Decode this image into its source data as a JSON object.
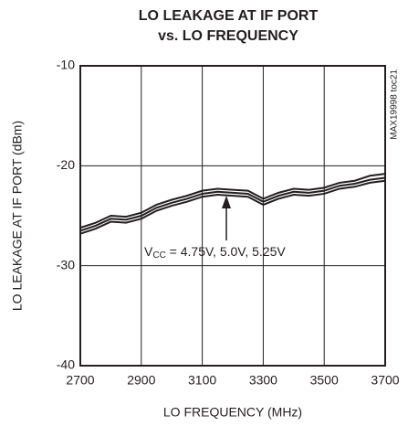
{
  "chart_data": {
    "type": "line",
    "title": [
      "LO LEAKAGE AT IF PORT",
      "vs. LO FREQUENCY"
    ],
    "xlabel": "LO FREQUENCY (MHz)",
    "ylabel": "LO LEAKAGE AT IF PORT (dBm)",
    "annotation": [
      "V",
      "CC",
      " = 4.75V, 5.0V, 5.25V"
    ],
    "side_note": "MAX19998 toc21",
    "x": [
      2700,
      2750,
      2800,
      2850,
      2900,
      2950,
      3000,
      3050,
      3100,
      3150,
      3200,
      3250,
      3300,
      3350,
      3400,
      3450,
      3500,
      3550,
      3600,
      3650,
      3700
    ],
    "series": [
      {
        "color": "#231f20",
        "values": [
          -26.2,
          -25.7,
          -25.0,
          -25.1,
          -24.7,
          -23.9,
          -23.4,
          -23.0,
          -22.5,
          -22.3,
          -22.4,
          -22.5,
          -23.3,
          -22.7,
          -22.3,
          -22.4,
          -22.2,
          -21.7,
          -21.5,
          -21.0,
          -20.8
        ]
      },
      {
        "color": "#231f20",
        "values": [
          -26.5,
          -26.0,
          -25.3,
          -25.4,
          -25.0,
          -24.2,
          -23.7,
          -23.3,
          -22.8,
          -22.6,
          -22.7,
          -22.8,
          -23.6,
          -23.0,
          -22.6,
          -22.7,
          -22.5,
          -22.0,
          -21.8,
          -21.4,
          -21.2
        ]
      },
      {
        "color": "#231f20",
        "values": [
          -26.8,
          -26.3,
          -25.6,
          -25.7,
          -25.3,
          -24.5,
          -24.0,
          -23.6,
          -23.1,
          -22.9,
          -23.0,
          -23.1,
          -23.9,
          -23.3,
          -22.9,
          -23.0,
          -22.8,
          -22.3,
          -22.1,
          -21.7,
          -21.5
        ]
      }
    ],
    "xlim": [
      2700,
      3700
    ],
    "xticks": [
      2700,
      2900,
      3100,
      3300,
      3500,
      3700
    ],
    "ylim": [
      -40,
      -10
    ],
    "yticks": [
      -40,
      -30,
      -20,
      -10
    ],
    "grid": true
  }
}
